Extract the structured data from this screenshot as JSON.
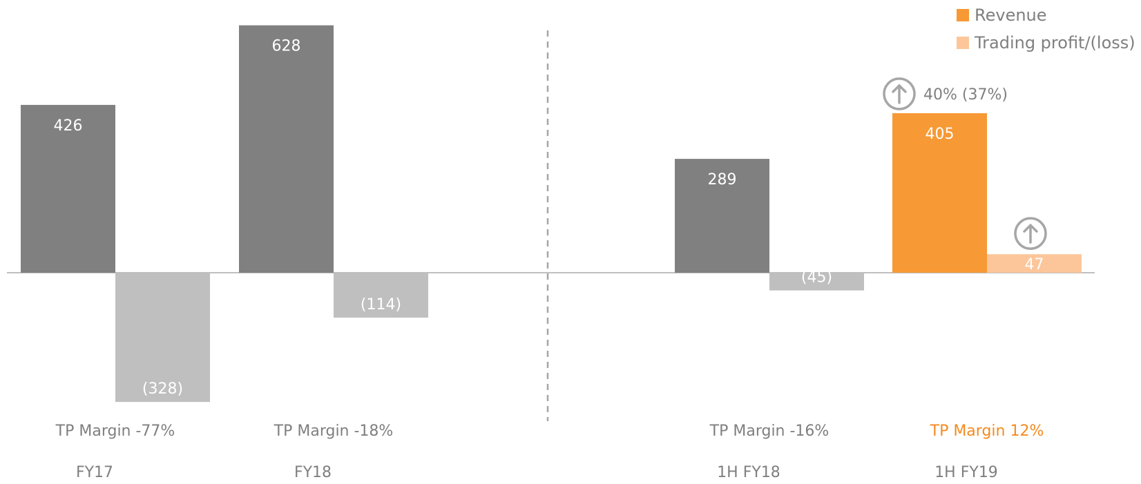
{
  "colors": {
    "revenue_past": "#808080",
    "profit_past": "#bfbfbf",
    "revenue_current": "#f79935",
    "profit_current": "#fcc69a",
    "text_gray": "#7f7f7f",
    "accent": "#f58a1f"
  },
  "legend": {
    "revenue": "Revenue",
    "trading_profit": "Trading profit/(loss)"
  },
  "chart_data": {
    "type": "bar",
    "categories": [
      "FY17",
      "FY18",
      "1H FY18",
      "1H FY19"
    ],
    "margins": [
      "TP Margin -77%",
      "TP Margin -18%",
      "TP Margin -16%",
      "TP Margin 12%"
    ],
    "series": [
      {
        "name": "Revenue",
        "values": [
          426,
          628,
          289,
          405
        ],
        "labels": [
          "426",
          "628",
          "289",
          "405"
        ]
      },
      {
        "name": "Trading profit/(loss)",
        "values": [
          -328,
          -114,
          -45,
          47
        ],
        "labels": [
          "(328)",
          "(114)",
          "(45)",
          "47"
        ]
      }
    ],
    "highlight_category": "1H FY19",
    "revenue_growth_annotation": "40% (37%)",
    "ylim": [
      -330,
      630
    ],
    "grid": false,
    "legend_position": "top-right",
    "divider_after_category": "FY18"
  }
}
